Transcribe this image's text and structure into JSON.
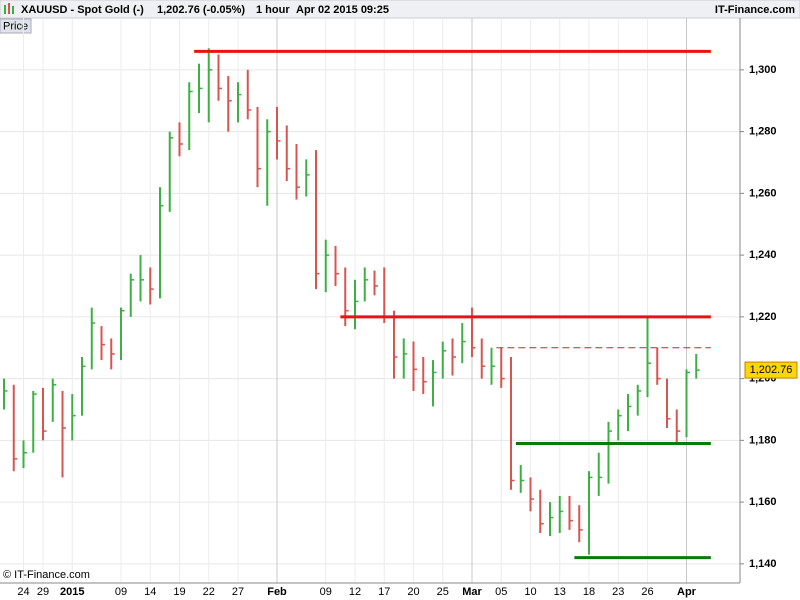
{
  "chart_data": {
    "type": "ohlc",
    "symbol": "XAUUSD - Spot Gold (-)",
    "quote": "1,202.76 (-0.05%)",
    "timeframe": "1 hour",
    "timestamp": "Apr 02 2015 09:25",
    "brand": "IT-Finance.com",
    "panel_label": "Price",
    "copyright": "© IT-Finance.com",
    "categories": [
      null,
      null,
      "24",
      null,
      "29",
      null,
      null,
      "2015",
      null,
      null,
      null,
      null,
      "09",
      null,
      null,
      "14",
      null,
      null,
      "19",
      null,
      null,
      "22",
      null,
      null,
      "27",
      null,
      null,
      null,
      "Feb",
      null,
      null,
      null,
      null,
      "09",
      null,
      null,
      "12",
      null,
      null,
      "17",
      null,
      null,
      "20",
      null,
      null,
      "25",
      null,
      null,
      "Mar",
      null,
      null,
      "05",
      null,
      null,
      "10",
      null,
      null,
      "13",
      null,
      null,
      "18",
      null,
      null,
      "23",
      null,
      null,
      "26",
      null,
      null,
      null,
      "Apr",
      null
    ],
    "high": [
      1200,
      1198,
      1180,
      1196,
      1197,
      1200,
      1196,
      1195,
      1207,
      1223,
      1217,
      1213,
      1223,
      1234,
      1240,
      1236,
      1262,
      1280,
      1283,
      1296,
      1302,
      1307,
      1305,
      1298,
      1296,
      1300,
      1288,
      1284,
      1288,
      1282,
      1276,
      1271,
      1274,
      1245,
      1243,
      1236,
      1232,
      1236,
      1235,
      1236,
      1222,
      1213,
      1212,
      1207,
      1206,
      1212,
      1213,
      1218,
      1223,
      1213,
      1210,
      1210,
      1207,
      1172,
      1168,
      1164,
      1160,
      1162,
      1162,
      1159,
      1170,
      1176,
      1186,
      1190,
      1195,
      1198,
      1220,
      1210,
      1200,
      1190,
      1203,
      1208
    ],
    "low": [
      1190,
      1170,
      1171,
      1176,
      1180,
      1186,
      1168,
      1180,
      1188,
      1203,
      1206,
      1203,
      1206,
      1220,
      1225,
      1224,
      1226,
      1254,
      1272,
      1274,
      1286,
      1283,
      1290,
      1280,
      1283,
      1284,
      1262,
      1256,
      1271,
      1264,
      1258,
      1259,
      1229,
      1228,
      1230,
      1217,
      1216,
      1225,
      1227,
      1218,
      1200,
      1200,
      1196,
      1195,
      1191,
      1200,
      1201,
      1205,
      1207,
      1200,
      1198,
      1197,
      1164,
      1163,
      1157,
      1150,
      1149,
      1150,
      1151,
      1147,
      1143,
      1162,
      1166,
      1180,
      1183,
      1188,
      1194,
      1198,
      1184,
      1179,
      1181,
      1200
    ],
    "close": [
      1196,
      1174,
      1176,
      1195,
      1183,
      1198,
      1184,
      1188,
      1204,
      1218,
      1211,
      1208,
      1222,
      1232,
      1232,
      1229,
      1256,
      1278,
      1276,
      1293,
      1294,
      1300,
      1294,
      1290,
      1292,
      1287,
      1268,
      1280,
      1277,
      1268,
      1262,
      1266,
      1234,
      1240,
      1234,
      1222,
      1225,
      1232,
      1230,
      1220,
      1207,
      1208,
      1203,
      1199,
      1202,
      1209,
      1207,
      1212,
      1210,
      1204,
      1204,
      1200,
      1167,
      1167,
      1161,
      1153,
      1155,
      1157,
      1154,
      1151,
      1168,
      1168,
      1183,
      1188,
      1191,
      1196,
      1205,
      1200,
      1187,
      1183,
      1202,
      1202.76
    ],
    "up_color": "#3cb043",
    "down_color": "#d9534f",
    "last": 1202.76,
    "last_label": "1,202.76",
    "levels": [
      {
        "value": 1306,
        "color": "#e8140f",
        "style": "solid",
        "start": 20
      },
      {
        "value": 1220,
        "color": "#e8140f",
        "style": "solid",
        "start": 35
      },
      {
        "value": 1210,
        "color": "#c0282a",
        "style": "dashed",
        "start": 51
      },
      {
        "value": 1179,
        "color": "#0b7a0b",
        "style": "solid",
        "start": 53
      },
      {
        "value": 1142,
        "color": "#0b7a0b",
        "style": "solid",
        "start": 59
      }
    ],
    "ylim": [
      1133.8,
      1316.8
    ],
    "yticks": [
      {
        "value": 1140,
        "label": "1,140"
      },
      {
        "value": 1160,
        "label": "1,160"
      },
      {
        "value": 1180,
        "label": "1,180"
      },
      {
        "value": 1200,
        "label": "1,200"
      },
      {
        "value": 1220,
        "label": "1,220"
      },
      {
        "value": 1240,
        "label": "1,240"
      },
      {
        "value": 1260,
        "label": "1,260"
      },
      {
        "value": 1280,
        "label": "1,280"
      },
      {
        "value": 1300,
        "label": "1,300"
      }
    ],
    "grid": true
  }
}
